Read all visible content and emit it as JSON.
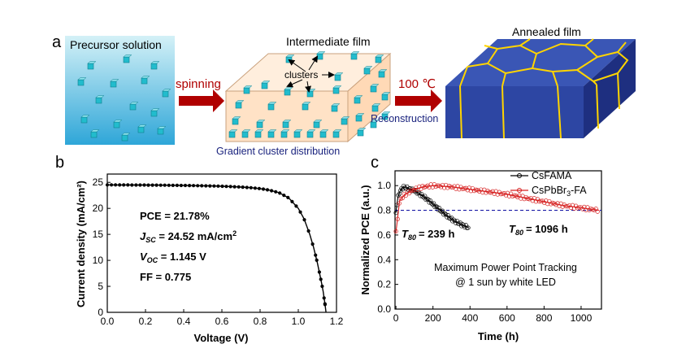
{
  "panel_a": {
    "label": "a",
    "precursor_title": "Precursor solution",
    "step1_label": "spinning",
    "intermediate_title": "Intermediate film",
    "clusters_label": "clusters",
    "distribution_label": "Gradient cluster distribution",
    "step2_label": "100 ℃",
    "reconstruction_label": "Reconstruction",
    "annealed_title": "Annealed film",
    "colors": {
      "solution_top": "#cfeff6",
      "solution_bottom": "#2fa9d9",
      "cube": "#23bfcf",
      "box_front": "#ffe3c8",
      "box_top": "#ffecd6",
      "arrow": "#b00000",
      "grain": "#2d46a3",
      "grain_side": "#1e2f80",
      "boundary": "#ffd400",
      "blue_text": "#1a237e"
    }
  },
  "panel_b": {
    "label": "b",
    "annotations": [
      "PCE = 21.78%",
      "J",
      "SC",
      " = 24.52 mA/cm",
      "2",
      "V",
      "OC",
      " = 1.145 V",
      "FF = 0.775"
    ],
    "chart_data": {
      "type": "line",
      "xlabel": "Voltage (V)",
      "ylabel": "Current density (mA/cm²)",
      "xlim": [
        0.0,
        1.2
      ],
      "ylim": [
        0,
        25
      ],
      "xticks": [
        "0.0",
        "0.2",
        "0.4",
        "0.6",
        "0.8",
        "1.0",
        "1.2"
      ],
      "yticks": [
        "0",
        "5",
        "10",
        "15",
        "20",
        "25"
      ],
      "grid": false,
      "series": [
        {
          "color": "#000000",
          "x": [
            0.0,
            0.05,
            0.1,
            0.15,
            0.2,
            0.25,
            0.3,
            0.35,
            0.4,
            0.45,
            0.5,
            0.55,
            0.6,
            0.65,
            0.7,
            0.75,
            0.8,
            0.85,
            0.9,
            0.95,
            1.0,
            1.03,
            1.06,
            1.08,
            1.1,
            1.12,
            1.13,
            1.14,
            1.145
          ],
          "y": [
            24.52,
            24.51,
            24.5,
            24.49,
            24.48,
            24.47,
            24.45,
            24.43,
            24.41,
            24.38,
            24.35,
            24.31,
            24.26,
            24.19,
            24.1,
            23.98,
            23.8,
            23.5,
            23.0,
            22.0,
            20.0,
            18.0,
            15.0,
            12.5,
            9.5,
            6.0,
            4.0,
            1.5,
            0.0
          ]
        }
      ]
    }
  },
  "panel_c": {
    "label": "c",
    "annotations": {
      "t80_csfama_t": "T",
      "t80_csfama_sub": "80",
      "t80_csfama_val": "= 239 h",
      "t80_cspbbr_t": "T",
      "t80_cspbbr_sub": "80",
      "t80_cspbbr_val": "= 1096 h",
      "mppt_line1": "Maximum Power Point Tracking",
      "mppt_line2": "@ 1 sun by white LED"
    },
    "legend": {
      "entries": [
        "CsFAMA",
        "CsPbBr",
        "3",
        "-FA"
      ],
      "position": "top-right"
    },
    "chart_data": {
      "type": "line",
      "xlabel": "Time (h)",
      "ylabel": "Normalized PCE (a.u.)",
      "xlim": [
        0,
        1100
      ],
      "ylim": [
        0.0,
        1.1
      ],
      "xticks": [
        "0",
        "200",
        "400",
        "600",
        "800",
        "1000"
      ],
      "yticks": [
        "0.0",
        "0.2",
        "0.4",
        "0.6",
        "0.8",
        "1.0"
      ],
      "grid": false,
      "reference_line": {
        "y": 0.8,
        "style": "dashed",
        "color": "#1a1aa6"
      },
      "series": [
        {
          "name": "CsFAMA",
          "color": "#000000",
          "x": [
            0,
            10,
            20,
            40,
            60,
            80,
            100,
            130,
            160,
            200,
            240,
            280,
            320,
            360,
            390
          ],
          "y": [
            0.78,
            0.9,
            0.95,
            0.99,
            0.98,
            0.97,
            0.96,
            0.93,
            0.9,
            0.85,
            0.8,
            0.75,
            0.71,
            0.68,
            0.66
          ]
        },
        {
          "name": "CsPbBr3-FA",
          "color": "#d62020",
          "x": [
            0,
            20,
            50,
            100,
            150,
            200,
            300,
            400,
            500,
            600,
            700,
            800,
            900,
            1000,
            1096
          ],
          "y": [
            0.62,
            0.88,
            0.93,
            0.97,
            0.99,
            1.0,
            0.99,
            0.97,
            0.95,
            0.93,
            0.9,
            0.87,
            0.84,
            0.82,
            0.8
          ]
        }
      ]
    }
  }
}
